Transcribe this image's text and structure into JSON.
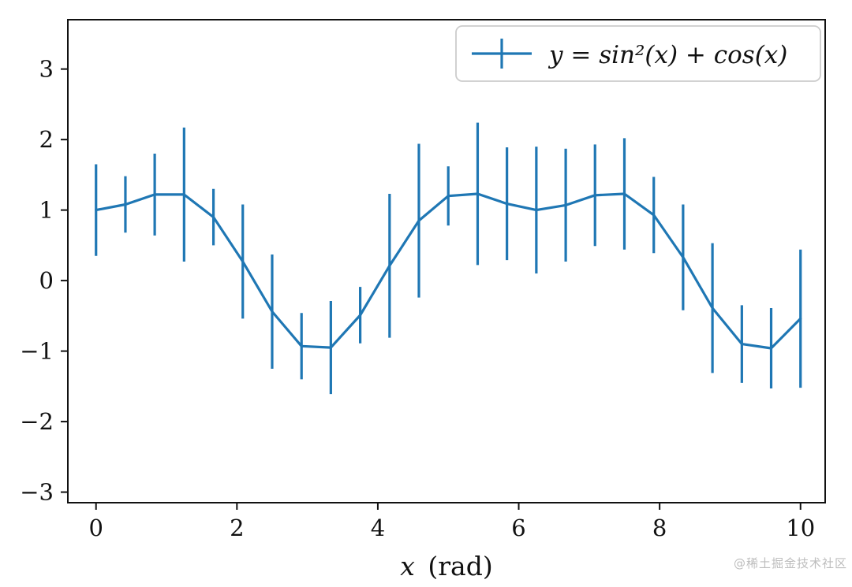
{
  "watermark": "@稀土掘金技术社区",
  "chart_data": {
    "type": "line",
    "title": "",
    "xlabel": "x (rad)",
    "ylabel": "",
    "grid": false,
    "xlim": [
      -0.4,
      10.35
    ],
    "ylim": [
      -3.15,
      3.7
    ],
    "xticks": [
      0,
      2,
      4,
      6,
      8,
      10
    ],
    "yticks": [
      -3,
      -2,
      -1,
      0,
      1,
      2,
      3
    ],
    "legend": {
      "label": "y = sin²(x) + cos(x)",
      "position": "upper right",
      "marker": "errorbar"
    },
    "series": [
      {
        "name": "y = sin²(x) + cos(x)",
        "color": "#1f77b4",
        "style": "errorbar-line",
        "x": [
          0.0,
          0.417,
          0.833,
          1.25,
          1.667,
          2.083,
          2.5,
          2.917,
          3.333,
          3.75,
          4.167,
          4.583,
          5.0,
          5.417,
          5.833,
          6.25,
          6.667,
          7.083,
          7.5,
          7.917,
          8.333,
          8.75,
          9.167,
          9.583,
          10.0
        ],
        "y": [
          1.0,
          1.08,
          1.22,
          1.22,
          0.9,
          0.27,
          -0.44,
          -0.93,
          -0.95,
          -0.49,
          0.21,
          0.85,
          1.2,
          1.23,
          1.09,
          1.0,
          1.07,
          1.21,
          1.23,
          0.93,
          0.33,
          -0.39,
          -0.9,
          -0.96,
          -0.54
        ],
        "yerr": [
          0.65,
          0.4,
          0.58,
          0.95,
          0.4,
          0.81,
          0.81,
          0.47,
          0.66,
          0.4,
          1.02,
          1.09,
          0.42,
          1.01,
          0.8,
          0.9,
          0.8,
          0.72,
          0.79,
          0.54,
          0.75,
          0.92,
          0.55,
          0.57,
          0.98
        ]
      }
    ]
  }
}
